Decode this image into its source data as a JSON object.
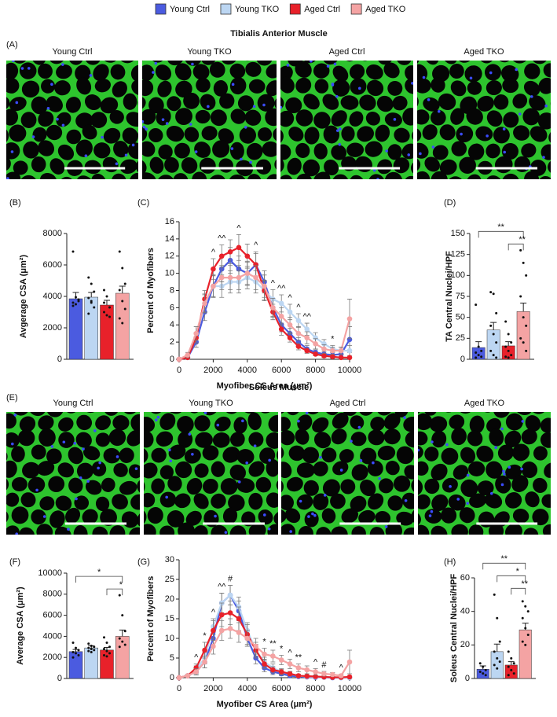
{
  "legend": [
    {
      "name": "Young Ctrl",
      "color": "#4b5be0"
    },
    {
      "name": "Young TKO",
      "color": "#bcd6f2"
    },
    {
      "name": "Aged Ctrl",
      "color": "#e8212a"
    },
    {
      "name": "Aged TKO",
      "color": "#f4a3a3"
    }
  ],
  "panels": [
    {
      "label": "(A)",
      "title": "Tibialis Anterior Muscle",
      "images": [
        "Young Ctrl",
        "Young TKO",
        "Aged Ctrl",
        "Aged TKO"
      ]
    },
    {
      "label": "(E)",
      "title": "Soleus Muscle",
      "images": [
        "Young Ctrl",
        "Young TKO",
        "Aged Ctrl",
        "Aged TKO"
      ]
    }
  ],
  "chart_data": [
    {
      "type": "bar",
      "label": "(B)",
      "ylabel": "Avgerage CSA (μm²)",
      "categories": [
        null,
        null,
        null,
        null
      ],
      "values": [
        3850,
        3950,
        3450,
        4200
      ],
      "errors": [
        400,
        300,
        300,
        450
      ],
      "colors": [
        "#4b5be0",
        "#bcd6f2",
        "#e8212a",
        "#f4a3a3"
      ],
      "points": [
        [
          6850,
          3950,
          3700,
          3600,
          3500,
          3800,
          3400
        ],
        [
          5200,
          4800,
          4300,
          3900,
          3600,
          3300,
          2900,
          3700
        ],
        [
          4400,
          4000,
          3300,
          3000,
          2800,
          2700,
          3600
        ],
        [
          6850,
          5800,
          4800,
          4400,
          3700,
          3200,
          2600,
          2300
        ]
      ],
      "ylim": [
        0,
        8000
      ],
      "yticks": [
        0,
        2000,
        4000,
        6000,
        8000
      ],
      "annotations": []
    },
    {
      "type": "line",
      "label": "(C)",
      "ylabel": "Percent of Myofibers",
      "xlabel": "Myofiber CS Area (μm²)",
      "x": [
        0,
        500,
        1000,
        1500,
        2000,
        2500,
        3000,
        3500,
        4000,
        4500,
        5000,
        5500,
        6000,
        6500,
        7000,
        7500,
        8000,
        8500,
        9000,
        9500,
        10000
      ],
      "series": [
        {
          "color": "#4b5be0",
          "values": [
            0,
            0.2,
            2,
            5.5,
            8.5,
            10.5,
            11.5,
            10.5,
            10,
            11,
            9,
            6,
            4,
            3,
            2,
            1.2,
            0.8,
            0.6,
            0.5,
            0.6,
            2.3
          ],
          "errors": [
            0,
            0.2,
            0.6,
            1,
            1.3,
            1.5,
            1.5,
            1.5,
            1.3,
            1.5,
            1.3,
            1,
            0.8,
            0.6,
            0.5,
            0.4,
            0.3,
            0.3,
            0.3,
            0.4,
            1.5
          ]
        },
        {
          "color": "#bcd6f2",
          "values": [
            0,
            0.3,
            2.5,
            6.5,
            8.5,
            8.5,
            9,
            9,
            9.5,
            9,
            8,
            7,
            6.5,
            5.5,
            4.5,
            3.5,
            2.5,
            1.8,
            1.2,
            1,
            1
          ],
          "errors": [
            0,
            0.2,
            0.6,
            1,
            1.2,
            1.3,
            1.3,
            1.3,
            1.3,
            1.3,
            1.2,
            1.1,
            1,
            0.9,
            0.8,
            0.7,
            0.6,
            0.5,
            0.4,
            0.4,
            0.6
          ]
        },
        {
          "color": "#e8212a",
          "values": [
            0,
            0.2,
            2.5,
            7,
            10.5,
            12,
            12.5,
            13,
            12,
            11,
            8,
            5.5,
            3.5,
            2.5,
            1.5,
            1,
            0.6,
            0.4,
            0.3,
            0.2,
            0.2
          ],
          "errors": [
            0,
            0.2,
            0.6,
            1,
            1.2,
            1.3,
            1.4,
            1.5,
            1.4,
            1.3,
            1.1,
            0.9,
            0.7,
            0.5,
            0.4,
            0.3,
            0.2,
            0.2,
            0.2,
            0.1,
            0.1
          ]
        },
        {
          "color": "#f4a3a3",
          "values": [
            0,
            0.5,
            3,
            6.5,
            8.5,
            9.5,
            9.5,
            9.5,
            10,
            9.5,
            8.5,
            6,
            5,
            4,
            3,
            2.5,
            1.8,
            1.2,
            1,
            1,
            4.7
          ],
          "errors": [
            0,
            0.3,
            0.8,
            1.1,
            1.3,
            1.4,
            1.4,
            1.4,
            1.4,
            1.4,
            1.3,
            1.1,
            1,
            0.9,
            0.8,
            0.7,
            0.6,
            0.5,
            0.4,
            0.4,
            2.3
          ]
        }
      ],
      "xlim": [
        0,
        10000
      ],
      "xticks": [
        0,
        2000,
        4000,
        6000,
        8000,
        10000
      ],
      "ylim": [
        0,
        16
      ],
      "yticks": [
        0,
        2,
        4,
        6,
        8,
        10,
        12,
        14,
        16
      ],
      "annotations": [
        {
          "text": "^",
          "x": 2000
        },
        {
          "text": "^^",
          "x": 2500
        },
        {
          "text": "^",
          "x": 3500
        },
        {
          "text": "^",
          "x": 4500
        },
        {
          "text": "^",
          "x": 5500
        },
        {
          "text": "^^",
          "x": 6000
        },
        {
          "text": "^",
          "x": 6500
        },
        {
          "text": "^",
          "x": 7000
        },
        {
          "text": "^^",
          "x": 7500
        },
        {
          "text": "*",
          "x": 9000
        }
      ]
    },
    {
      "type": "bar",
      "label": "(D)",
      "ylabel": "TA Central Nuclei/HPF",
      "categories": [
        null,
        null,
        null,
        null
      ],
      "values": [
        14,
        35,
        16,
        57
      ],
      "errors": [
        7,
        9,
        5,
        10
      ],
      "colors": [
        "#4b5be0",
        "#bcd6f2",
        "#e8212a",
        "#f4a3a3"
      ],
      "points": [
        [
          65,
          15,
          10,
          8,
          5,
          3,
          2
        ],
        [
          80,
          78,
          55,
          40,
          30,
          20,
          10,
          5,
          2
        ],
        [
          45,
          30,
          20,
          15,
          10,
          5,
          3,
          2
        ],
        [
          130,
          115,
          100,
          75,
          50,
          40,
          25,
          20,
          10
        ]
      ],
      "ylim": [
        0,
        150
      ],
      "yticks": [
        0,
        25,
        50,
        75,
        100,
        125,
        150
      ],
      "annotations": [
        {
          "text": "**",
          "from": 0,
          "to": 3
        },
        {
          "text": "**",
          "from": 2,
          "to": 3
        }
      ]
    },
    {
      "type": "bar",
      "label": "(F)",
      "ylabel": "Average CSA (μm²)",
      "categories": [
        null,
        null,
        null,
        null
      ],
      "values": [
        2550,
        2900,
        2700,
        4000
      ],
      "errors": [
        200,
        200,
        250,
        600
      ],
      "colors": [
        "#4b5be0",
        "#bcd6f2",
        "#e8212a",
        "#f4a3a3"
      ],
      "points": [
        [
          3400,
          2900,
          2700,
          2500,
          2400,
          2200,
          2000
        ],
        [
          3300,
          3100,
          3000,
          2900,
          2800,
          2700,
          2600,
          2500
        ],
        [
          3900,
          3400,
          3000,
          2800,
          2600,
          2400,
          2200,
          2100
        ],
        [
          7900,
          6000,
          4500,
          3800,
          3500,
          3200,
          3000
        ]
      ],
      "ylim": [
        0,
        10000
      ],
      "yticks": [
        0,
        2000,
        4000,
        6000,
        8000,
        10000
      ],
      "annotations": [
        {
          "text": "*",
          "from": 0,
          "to": 3
        },
        {
          "text": "*",
          "from": 2,
          "to": 3
        }
      ]
    },
    {
      "type": "line",
      "label": "(G)",
      "ylabel": "Percent of Myofibers",
      "xlabel": "Myofiber CS Area (μm²)",
      "x": [
        0,
        500,
        1000,
        1500,
        2000,
        2500,
        3000,
        3500,
        4000,
        4500,
        5000,
        5500,
        6000,
        6500,
        7000,
        7500,
        8000,
        8500,
        9000,
        9500,
        10000
      ],
      "series": [
        {
          "color": "#4b5be0",
          "values": [
            0,
            0.5,
            1.5,
            4,
            10,
            19,
            21,
            17,
            10,
            5,
            2.5,
            1.5,
            1,
            0.5,
            0.3,
            0.2,
            0.1,
            0.1,
            0,
            0,
            0
          ],
          "errors": [
            0,
            0.3,
            0.8,
            1.5,
            2,
            2.5,
            2.5,
            2.5,
            2,
            1.5,
            1,
            0.7,
            0.5,
            0.3,
            0.2,
            0.2,
            0.1,
            0.1,
            0,
            0,
            0
          ]
        },
        {
          "color": "#bcd6f2",
          "values": [
            0,
            0.5,
            2,
            5,
            13,
            19,
            21,
            18,
            12,
            7,
            4,
            2.5,
            1.5,
            1,
            0.5,
            0.3,
            0.2,
            0.1,
            0.1,
            0,
            0
          ],
          "errors": [
            0,
            0.3,
            1,
            1.5,
            2,
            2.5,
            2.5,
            2.5,
            2,
            1.5,
            1.2,
            1,
            0.8,
            0.6,
            0.4,
            0.3,
            0.2,
            0.1,
            0.1,
            0,
            0
          ]
        },
        {
          "color": "#e8212a",
          "values": [
            0,
            0.5,
            2.5,
            7,
            12,
            16,
            16.5,
            15,
            11,
            7,
            3.5,
            2,
            1.5,
            1,
            0.5,
            0.4,
            0.3,
            0.2,
            0.1,
            0.1,
            0.2
          ],
          "errors": [
            0,
            0.3,
            1,
            2,
            2.5,
            3,
            3,
            3,
            2.5,
            2,
            1.2,
            0.8,
            0.6,
            0.5,
            0.3,
            0.3,
            0.2,
            0.2,
            0.1,
            0.1,
            0.2
          ]
        },
        {
          "color": "#f4a3a3",
          "values": [
            0,
            0.5,
            1.5,
            4,
            8,
            12,
            12.5,
            11.5,
            10,
            8,
            6,
            5.5,
            4.5,
            3.5,
            2.5,
            2,
            1.5,
            1,
            0.8,
            0.5,
            4
          ],
          "errors": [
            0,
            0.3,
            0.8,
            1.5,
            2,
            2.5,
            2.5,
            2.5,
            2,
            2,
            1.5,
            1.5,
            1.2,
            1.2,
            1,
            1,
            0.8,
            0.6,
            0.5,
            0.4,
            3
          ]
        }
      ],
      "xlim": [
        0,
        10000
      ],
      "xticks": [
        0,
        2000,
        4000,
        6000,
        8000,
        10000
      ],
      "ylim": [
        0,
        30
      ],
      "yticks": [
        0,
        5,
        10,
        15,
        20,
        25,
        30
      ],
      "annotations": [
        {
          "text": "^",
          "x": 1000
        },
        {
          "text": "*",
          "x": 1500
        },
        {
          "text": "^",
          "x": 2000
        },
        {
          "text": "^^",
          "x": 2500
        },
        {
          "text": "#",
          "x": 3000
        },
        {
          "text": "*",
          "x": 5000
        },
        {
          "text": "**",
          "x": 5500
        },
        {
          "text": "*",
          "x": 6000
        },
        {
          "text": "^",
          "x": 6500
        },
        {
          "text": "**",
          "x": 7000
        },
        {
          "text": "^",
          "x": 8000
        },
        {
          "text": "#",
          "x": 8500
        },
        {
          "text": "^",
          "x": 9500
        }
      ]
    },
    {
      "type": "bar",
      "label": "(H)",
      "ylabel": "Soleus Central Nuclei/HPF",
      "categories": [
        null,
        null,
        null,
        null
      ],
      "values": [
        5.5,
        16,
        8,
        29
      ],
      "errors": [
        2,
        4.5,
        2,
        4
      ],
      "colors": [
        "#4b5be0",
        "#bcd6f2",
        "#e8212a",
        "#f4a3a3"
      ],
      "points": [
        [
          9,
          7,
          5,
          4,
          3,
          2
        ],
        [
          50,
          36,
          22,
          16,
          12,
          10,
          8,
          6
        ],
        [
          16,
          12,
          9,
          7,
          5,
          3,
          2
        ],
        [
          46,
          43,
          40,
          36,
          30,
          26,
          22,
          20
        ]
      ],
      "ylim": [
        0,
        60
      ],
      "yticks": [
        0,
        20,
        40,
        60
      ],
      "annotations": [
        {
          "text": "**",
          "from": 0,
          "to": 3
        },
        {
          "text": "*",
          "from": 1,
          "to": 3
        },
        {
          "text": "**",
          "from": 2,
          "to": 3
        }
      ]
    }
  ]
}
